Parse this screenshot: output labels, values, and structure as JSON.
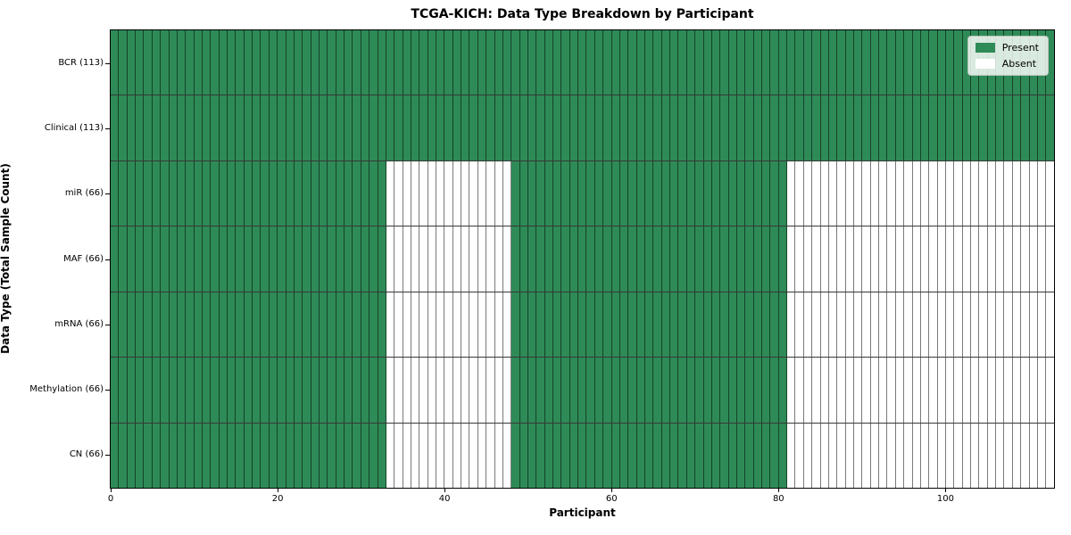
{
  "chart_data": {
    "type": "heatmap",
    "title": "TCGA-KICH: Data Type Breakdown by Participant",
    "xlabel": "Participant",
    "ylabel": "Data Type (Total Sample Count)",
    "n_participants": 113,
    "xlim": [
      0,
      113
    ],
    "x_ticks": [
      0,
      20,
      40,
      60,
      80,
      100
    ],
    "grid": true,
    "legend_position": "upper right",
    "rows": [
      {
        "label": "BCR (113)",
        "present_count": 113,
        "present_ranges": [
          [
            0,
            113
          ]
        ]
      },
      {
        "label": "Clinical (113)",
        "present_count": 113,
        "present_ranges": [
          [
            0,
            113
          ]
        ]
      },
      {
        "label": "miR (66)",
        "present_count": 66,
        "present_ranges": [
          [
            0,
            33
          ],
          [
            48,
            81
          ]
        ]
      },
      {
        "label": "MAF (66)",
        "present_count": 66,
        "present_ranges": [
          [
            0,
            33
          ],
          [
            48,
            81
          ]
        ]
      },
      {
        "label": "mRNA (66)",
        "present_count": 66,
        "present_ranges": [
          [
            0,
            33
          ],
          [
            48,
            81
          ]
        ]
      },
      {
        "label": "Methylation (66)",
        "present_count": 66,
        "present_ranges": [
          [
            0,
            33
          ],
          [
            48,
            81
          ]
        ]
      },
      {
        "label": "CN (66)",
        "present_count": 66,
        "present_ranges": [
          [
            0,
            33
          ],
          [
            48,
            81
          ]
        ]
      }
    ],
    "legend": [
      {
        "label": "Present",
        "color": "#2e8b57"
      },
      {
        "label": "Absent",
        "color": "#ffffff"
      }
    ],
    "colors": {
      "present": "#2e8b57",
      "absent": "#ffffff",
      "grid_line": "rgba(0,0,0,0.52)",
      "row_separator": "rgba(0,0,0,0.78)",
      "spine": "#000000",
      "background": "#ffffff"
    }
  }
}
